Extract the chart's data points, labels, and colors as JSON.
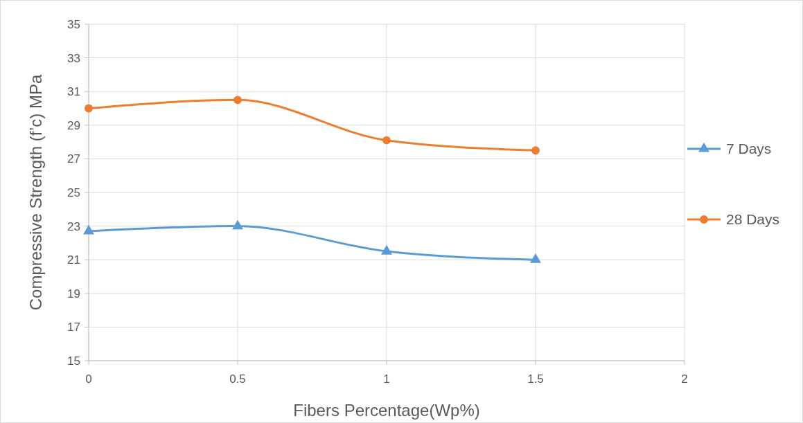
{
  "chart_data": {
    "type": "line",
    "xlabel": "Fibers Percentage(Wp%)",
    "ylabel": "Compressive Strength (f’c) MPa",
    "x": [
      0,
      0.5,
      1,
      1.5
    ],
    "series": [
      {
        "name": "7 Days",
        "color": "#5b9bd5",
        "marker": "triangle",
        "values": [
          22.7,
          23.0,
          21.5,
          21.0
        ]
      },
      {
        "name": "28 Days",
        "color": "#ed7d31",
        "marker": "circle",
        "values": [
          30.0,
          30.5,
          28.1,
          27.5
        ]
      }
    ],
    "xlim": [
      0,
      2
    ],
    "xticks": [
      0,
      0.5,
      1,
      1.5,
      2
    ],
    "ylim": [
      15,
      35
    ],
    "yticks": [
      15,
      17,
      19,
      21,
      23,
      25,
      27,
      29,
      31,
      33,
      35
    ],
    "grid": true,
    "legend": "right"
  }
}
